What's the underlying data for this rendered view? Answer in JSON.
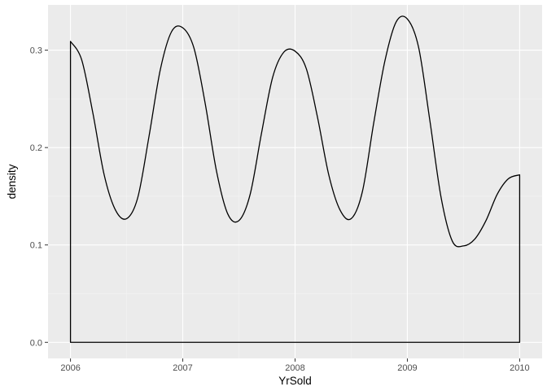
{
  "chart_data": {
    "type": "area",
    "title": "",
    "xlabel": "YrSold",
    "ylabel": "density",
    "xlim": [
      2005.8,
      2010.2
    ],
    "ylim": [
      -0.0165,
      0.3465
    ],
    "x_ticks": [
      2006,
      2007,
      2008,
      2009,
      2010
    ],
    "x_tick_labels": [
      "2006",
      "2007",
      "2008",
      "2009",
      "2010"
    ],
    "y_ticks": [
      0.0,
      0.1,
      0.2,
      0.3
    ],
    "y_tick_labels": [
      "0.0",
      "0.1",
      "0.2",
      "0.3"
    ],
    "grid": true,
    "legend": "none",
    "fill": "none",
    "series": [
      {
        "x": [
          2006.0,
          2006.1,
          2006.2,
          2006.3,
          2006.4,
          2006.5,
          2006.6,
          2006.7,
          2006.8,
          2006.9,
          2007.0,
          2007.1,
          2007.2,
          2007.3,
          2007.4,
          2007.5,
          2007.6,
          2007.7,
          2007.8,
          2007.9,
          2008.0,
          2008.1,
          2008.2,
          2008.3,
          2008.4,
          2008.5,
          2008.6,
          2008.7,
          2008.8,
          2008.9,
          2009.0,
          2009.1,
          2009.2,
          2009.3,
          2009.4,
          2009.5,
          2009.6,
          2009.7,
          2009.8,
          2009.9,
          2010.0
        ],
        "y": [
          0.309,
          0.29,
          0.235,
          0.172,
          0.136,
          0.127,
          0.149,
          0.212,
          0.28,
          0.319,
          0.323,
          0.302,
          0.245,
          0.176,
          0.132,
          0.125,
          0.152,
          0.214,
          0.272,
          0.298,
          0.299,
          0.281,
          0.231,
          0.172,
          0.136,
          0.127,
          0.155,
          0.225,
          0.289,
          0.329,
          0.332,
          0.303,
          0.228,
          0.149,
          0.104,
          0.099,
          0.106,
          0.125,
          0.152,
          0.168,
          0.172
        ]
      }
    ]
  }
}
